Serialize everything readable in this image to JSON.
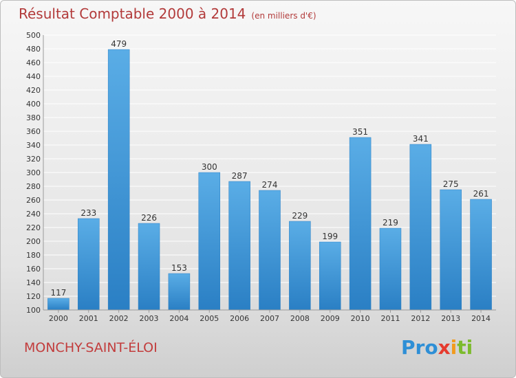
{
  "header": {
    "title": "Résultat Comptable 2000 à 2014",
    "unit": "(en milliers d'€)"
  },
  "footer": {
    "place": "MONCHY-SAINT-ÉLOI",
    "logo": [
      "Pro",
      "x",
      "i",
      "ti"
    ]
  },
  "colors": {
    "bar_top": "#5aade6",
    "bar_bottom": "#2a7fc4",
    "title": "#b23a3a",
    "grid": "#ffffff"
  },
  "chart_data": {
    "type": "bar",
    "title": "Résultat Comptable 2000 à 2014",
    "subtitle": "(en milliers d'€)",
    "xlabel": "",
    "ylabel": "",
    "categories": [
      "2000",
      "2001",
      "2002",
      "2003",
      "2004",
      "2005",
      "2006",
      "2007",
      "2008",
      "2009",
      "2010",
      "2011",
      "2012",
      "2013",
      "2014"
    ],
    "values": [
      117,
      233,
      479,
      226,
      153,
      300,
      287,
      274,
      229,
      199,
      351,
      219,
      341,
      275,
      261
    ],
    "ylim": [
      100,
      500
    ],
    "yticks": [
      100,
      120,
      140,
      160,
      180,
      200,
      220,
      240,
      260,
      280,
      300,
      320,
      340,
      360,
      380,
      400,
      420,
      440,
      460,
      480,
      500
    ],
    "grid": true,
    "legend": "none"
  }
}
